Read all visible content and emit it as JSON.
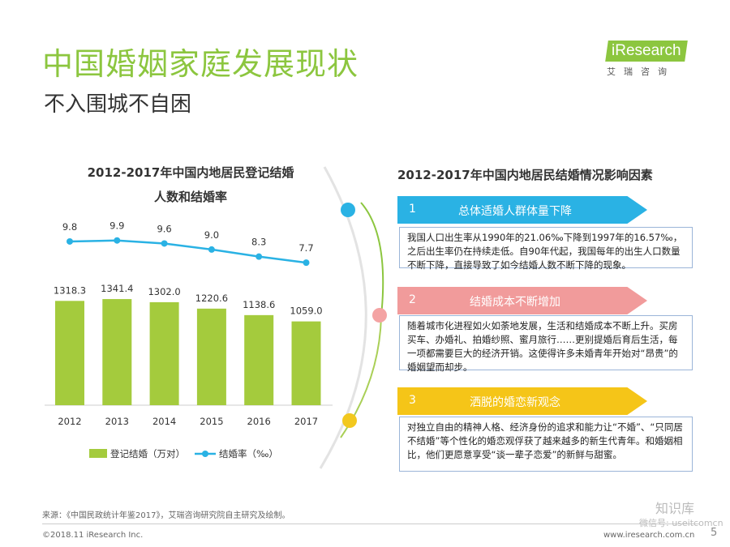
{
  "header": {
    "title": "中国婚姻家庭发展现状",
    "subtitle": "不入围城不自困",
    "logo_brand": "iResearch",
    "logo_cn": "艾瑞咨询"
  },
  "chart_data": {
    "type": "bar+line",
    "title_line1": "2012-2017年中国内地居民登记结婚",
    "title_line2": "人数和结婚率",
    "categories": [
      "2012",
      "2013",
      "2014",
      "2015",
      "2016",
      "2017"
    ],
    "series": [
      {
        "name": "登记结婚（万对）",
        "type": "bar",
        "values": [
          1318.3,
          1341.4,
          1302.0,
          1220.6,
          1138.6,
          1059.0
        ],
        "labels": [
          "1318.3",
          "1341.4",
          "1302.0",
          "1220.6",
          "1138.6",
          "1059.0"
        ]
      },
      {
        "name": "结婚率（‰）",
        "type": "line",
        "values": [
          9.8,
          9.9,
          9.6,
          9.0,
          8.3,
          7.7
        ],
        "labels": [
          "9.8",
          "9.9",
          "9.6",
          "9.0",
          "8.3",
          "7.7"
        ]
      }
    ],
    "legend": [
      "登记结婚（万对）",
      "结婚率（‰）"
    ],
    "legend_position": "bottom",
    "bar_ylim": [
      0,
      2100
    ],
    "line_ylim": [
      0,
      10.6
    ],
    "colors": {
      "bar": "#a4cb3d",
      "line": "#2ab2e4"
    }
  },
  "factors": {
    "title": "2012-2017年中国内地居民结婚情况影响因素",
    "items": [
      {
        "num": "1",
        "label": "总体适婚人群体量下降",
        "color": "#2ab2e4",
        "dot_color": "#2ab2e4",
        "text": "我国人口出生率从1990年的21.06‰下降到1997年的16.57‰，之后出生率仍在持续走低。自90年代起，我国每年的出生人口数量不断下降，直接导致了如今结婚人数不断下降的现象。"
      },
      {
        "num": "2",
        "label": "结婚成本不断增加",
        "color": "#f19b9b",
        "dot_color": "#f4a3a3",
        "text": "随着城市化进程如火如荼地发展，生活和结婚成本不断上升。买房买车、办婚礼、拍婚纱照、蜜月旅行……更别提婚后育后生活，每一项都需要巨大的经济开销。这使得许多未婚青年开始对“昂贵”的婚姻望而却步。"
      },
      {
        "num": "3",
        "label": "洒脱的婚恋新观念",
        "color": "#f5c518",
        "dot_color": "#f2c81e",
        "text": "对独立自由的精神人格、经济身份的追求和能力让“不婚”、“只同居不结婚”等个性化的婚恋观俘获了越来越多的新生代青年。和婚姻相比，他们更愿意享受“谈一辈子恋爱”的新鲜与甜蜜。"
      }
    ]
  },
  "footer": {
    "source": "来源：《中国民政统计年鉴2017》，艾瑞咨询研究院自主研究及绘制。",
    "copyright": "©2018.11 iResearch Inc.",
    "website": "www.iresearch.com.cn",
    "page": "5",
    "watermark": "知识库",
    "watermark2": "微信号: useitcomcn"
  }
}
